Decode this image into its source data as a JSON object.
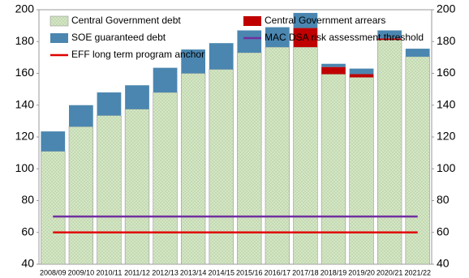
{
  "chart_data": {
    "type": "bar",
    "categories": [
      "2008/09",
      "2009/10",
      "2010/11",
      "2011/12",
      "2012/13",
      "2013/14",
      "2014/15",
      "2015/16",
      "2016/17",
      "2017/18",
      "2018/19",
      "2019/20",
      "2020/21",
      "2021/22"
    ],
    "series": [
      {
        "name": "Central Government debt",
        "color": "#d6e8c8",
        "values": [
          71,
          86.5,
          93.5,
          97.5,
          108,
          120,
          122.5,
          133,
          136.5,
          136.5,
          119.5,
          117.5,
          141,
          130.5
        ]
      },
      {
        "name": "Central Government arrears",
        "color": "#c00000",
        "values": [
          0,
          0,
          0,
          0,
          0,
          0,
          0,
          0,
          0,
          12,
          4.5,
          2,
          1,
          0
        ]
      },
      {
        "name": "SOE guaranteed debt",
        "color": "#4a86b0",
        "values": [
          12.5,
          13.5,
          14.5,
          15,
          15.5,
          15,
          16.5,
          14,
          12.5,
          9.5,
          2,
          3.5,
          5,
          5
        ]
      }
    ],
    "lines": [
      {
        "name": "MAC DSA risk assessment threshold",
        "color": "#7030a0",
        "value": 70
      },
      {
        "name": "EFF long term program anchor",
        "color": "#e00000",
        "value": 60
      }
    ],
    "ylim": [
      40,
      200
    ],
    "yticks": [
      40,
      60,
      80,
      100,
      120,
      140,
      160,
      180,
      200
    ],
    "y2lim": [
      40,
      200
    ],
    "y2ticks": [
      40,
      60,
      80,
      100,
      120,
      140,
      160,
      180,
      200
    ]
  }
}
